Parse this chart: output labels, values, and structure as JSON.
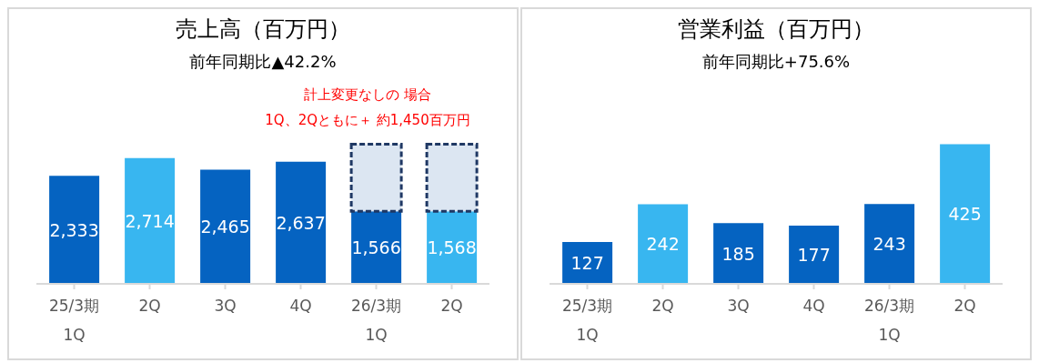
{
  "chart_data": [
    {
      "type": "bar",
      "title": "売上高（百万円）",
      "subtitle": "前年同期比▲42.2%",
      "categories": [
        "25/3期\n1Q",
        "2Q",
        "3Q",
        "4Q",
        "26/3期\n1Q",
        "2Q"
      ],
      "stacked": true,
      "tick_labels": "x",
      "grid": false,
      "legend": false,
      "series": [
        {
          "colors": [
            "#0563c1",
            "#38b6f0",
            "#0563c1",
            "#0563c1",
            "#0563c1",
            "#38b6f0"
          ],
          "values": [
            2333,
            2714,
            2465,
            2637,
            1566,
            1568
          ],
          "value_labels": [
            "2,333",
            "2,714",
            "2,465",
            "2,637",
            "1,566",
            "1,568"
          ]
        },
        {
          "color": "#dce6f2",
          "line_style": "dashed",
          "values": [
            null,
            null,
            null,
            null,
            1450,
            1450
          ]
        }
      ],
      "annotations": [
        "計上変更なしの 場合\n1Q、2Qともに＋ 約1,450百万円"
      ]
    },
    {
      "type": "bar",
      "title": "営業利益（百万円）",
      "subtitle": "前年同期比+75.6%",
      "categories": [
        "25/3期\n1Q",
        "2Q",
        "3Q",
        "4Q",
        "26/3期\n1Q",
        "2Q"
      ],
      "tick_labels": "x",
      "grid": false,
      "legend": false,
      "data_labels": true,
      "series": [
        {
          "colors": [
            "#0563c1",
            "#38b6f0",
            "#0563c1",
            "#0563c1",
            "#0563c1",
            "#38b6f0"
          ],
          "values": [
            127,
            242,
            185,
            177,
            243,
            425
          ]
        }
      ]
    }
  ]
}
